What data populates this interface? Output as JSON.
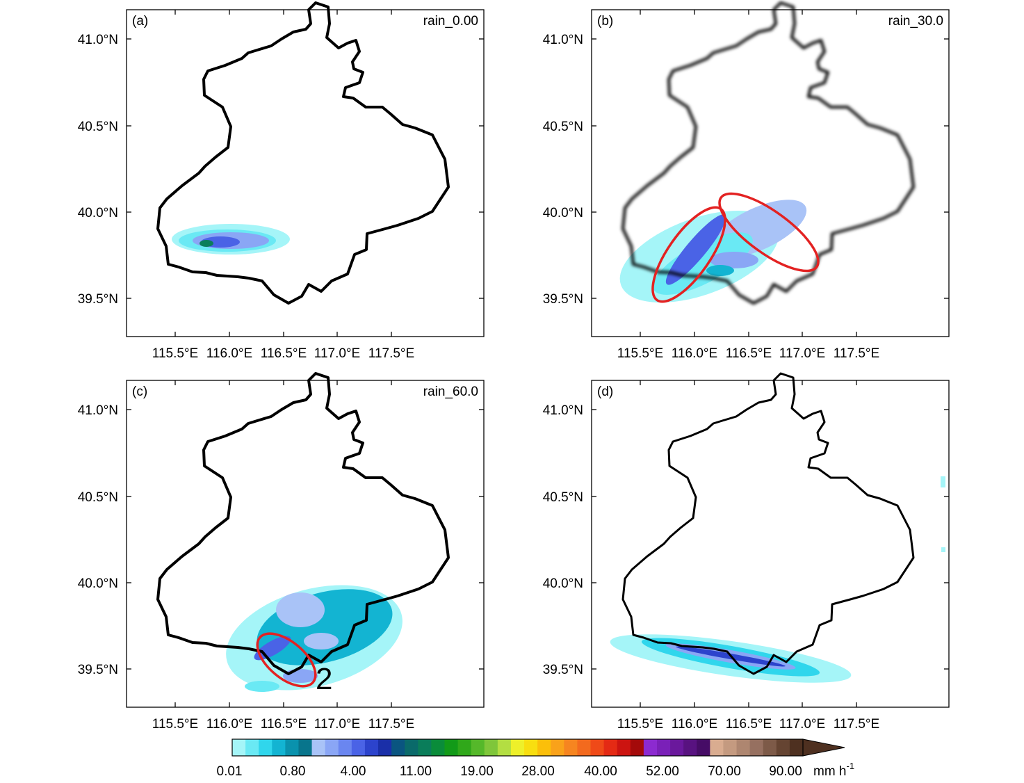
{
  "panels": [
    {
      "letter": "(a)",
      "title": "rain_0.00"
    },
    {
      "letter": "(b)",
      "title": "rain_30.0"
    },
    {
      "letter": "(c)",
      "title": "rain_60.0"
    },
    {
      "letter": "(d)",
      "title": ""
    }
  ],
  "axes": {
    "lat_ticks": [
      "41.0°N",
      "40.5°N",
      "40.0°N",
      "39.5°N"
    ],
    "lon_ticks": [
      "115.5°E",
      "116.0°E",
      "116.5°E",
      "117.0°E",
      "117.5°E"
    ]
  },
  "annotation_c": "2",
  "colorbar": {
    "labels": [
      "0.01",
      "0.80",
      "4.00",
      "11.00",
      "19.00",
      "28.00",
      "40.00",
      "52.00",
      "70.00",
      "90.00"
    ],
    "unit": "mm h",
    "unit_exp": "-1",
    "colors": [
      "#a5f5f8",
      "#6ae9f4",
      "#30d6ec",
      "#13b4d2",
      "#0a92ad",
      "#08758c",
      "#a9c3f7",
      "#8aa6f5",
      "#6a86f0",
      "#4a63e6",
      "#2c43cc",
      "#1a2fa8",
      "#0a5580",
      "#0a6a6a",
      "#0a7d5a",
      "#0a8c3a",
      "#129a18",
      "#30a81a",
      "#55b82a",
      "#7fc63a",
      "#b3de42",
      "#eef02a",
      "#f8de10",
      "#fbbf0a",
      "#f9a21a",
      "#f68520",
      "#f36a1e",
      "#ef4a18",
      "#e42a14",
      "#cc1410",
      "#a40a0a",
      "#8c2ad0",
      "#7a20b8",
      "#6a189c",
      "#581280",
      "#460c66",
      "#d9ac90",
      "#c49a80",
      "#ae8670",
      "#967060",
      "#7d5a48",
      "#654432",
      "#4e3020"
    ]
  }
}
